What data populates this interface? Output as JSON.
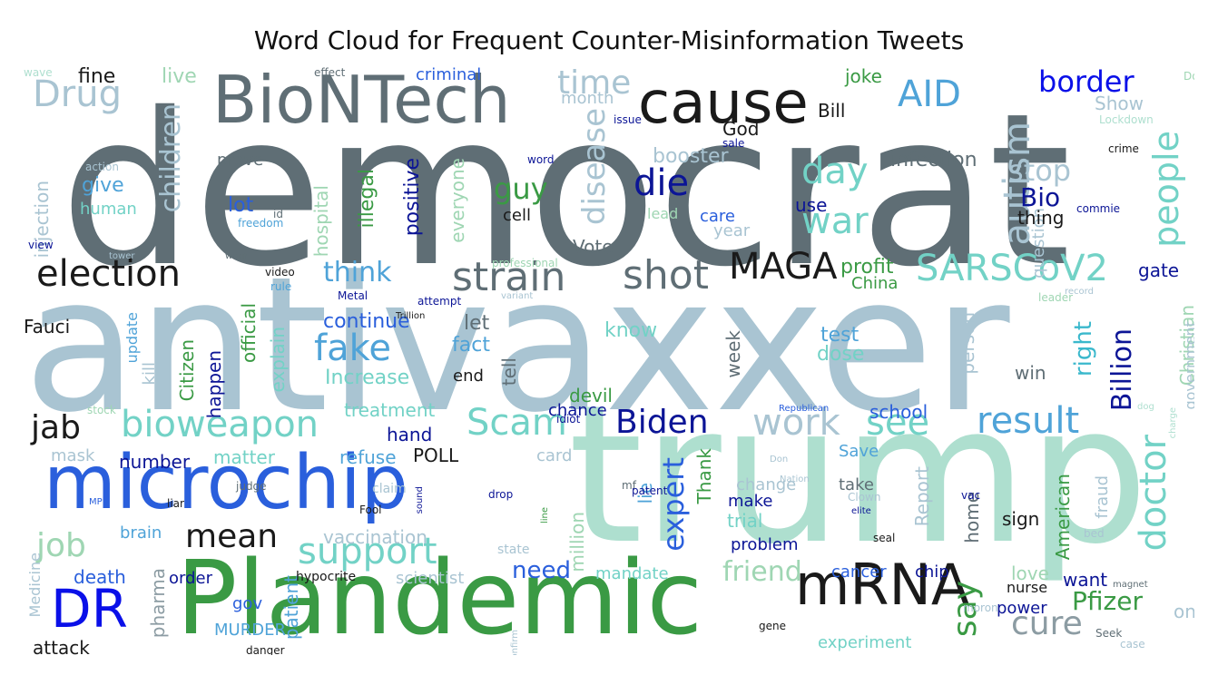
{
  "title": "Word Cloud for Frequent Counter-Misinformation Tweets",
  "palette": {
    "slate": "#5f6e75",
    "lightblue": "#a9c4d2",
    "mint": "#aedfcf",
    "green": "#3a9a44",
    "royalblue": "#2a5fdc",
    "navy": "#0c1596",
    "black": "#1a1a1a",
    "teal": "#72d2c6",
    "skyblue": "#4fa3d8",
    "lightgreen": "#9fd6b3"
  },
  "words": [
    {
      "text": "democrat",
      "color": "#5f6e75"
    },
    {
      "text": "antivaxxer",
      "color": "#a9c4d2"
    },
    {
      "text": "trump",
      "color": "#aedfcf"
    },
    {
      "text": "Plandemic",
      "color": "#3a9a44"
    },
    {
      "text": "microchip",
      "color": "#2a5fdc"
    },
    {
      "text": "BioNTech",
      "color": "#5f6e75"
    },
    {
      "text": "cause",
      "color": "#1a1a1a"
    },
    {
      "text": "mRNA",
      "color": "#1a1a1a"
    },
    {
      "text": "strain",
      "color": "#5f6e75"
    },
    {
      "text": "shot",
      "color": "#5f6e75"
    },
    {
      "text": "MAGA",
      "color": "#1a1a1a"
    },
    {
      "text": "election",
      "color": "#1a1a1a"
    },
    {
      "text": "SARSCoV2",
      "color": "#72d2c6"
    },
    {
      "text": "bioweapon",
      "color": "#72d2c6"
    },
    {
      "text": "Scam",
      "color": "#72d2c6"
    },
    {
      "text": "Biden",
      "color": "#0c1596"
    },
    {
      "text": "result",
      "color": "#4fa3d8"
    },
    {
      "text": "doctor",
      "color": "#72d2c6"
    },
    {
      "text": "people",
      "color": "#72d2c6"
    },
    {
      "text": "DR",
      "color": "#0a10e8"
    },
    {
      "text": "jab",
      "color": "#1a1a1a"
    },
    {
      "text": "support",
      "color": "#72d2c6"
    },
    {
      "text": "mean",
      "color": "#1a1a1a"
    },
    {
      "text": "job",
      "color": "#9fd6b3"
    },
    {
      "text": "Drug",
      "color": "#a9c4d2"
    },
    {
      "text": "AID",
      "color": "#4fa3d8"
    },
    {
      "text": "autism",
      "color": "#a9c4d2"
    },
    {
      "text": "border",
      "color": "#0a10e8"
    },
    {
      "text": "die",
      "color": "#0c1596"
    },
    {
      "text": "day",
      "color": "#72d2c6"
    },
    {
      "text": "war",
      "color": "#72d2c6"
    },
    {
      "text": "fake",
      "color": "#4fa3d8"
    },
    {
      "text": "work",
      "color": "#a9c4d2"
    },
    {
      "text": "see",
      "color": "#72d2c6"
    },
    {
      "text": "cure",
      "color": "#8c9ca3"
    },
    {
      "text": "say",
      "color": "#3a9a44"
    },
    {
      "text": "Pfizer",
      "color": "#3a9a44"
    },
    {
      "text": "friend",
      "color": "#9fd6b3"
    },
    {
      "text": "need",
      "color": "#2a5fdc"
    },
    {
      "text": "expert",
      "color": "#2a5fdc"
    },
    {
      "text": "Billion",
      "color": "#0c1596"
    },
    {
      "text": "right",
      "color": "#3ab8cc"
    },
    {
      "text": "time",
      "color": "#a9c4d2"
    },
    {
      "text": "disease",
      "color": "#a9c4d2"
    },
    {
      "text": "children",
      "color": "#a9c4d2"
    },
    {
      "text": "guy",
      "color": "#3a9a44"
    },
    {
      "text": "stop",
      "color": "#a9c4d2"
    },
    {
      "text": "Bio",
      "color": "#0c1596"
    },
    {
      "text": "think",
      "color": "#4fa3d8"
    },
    {
      "text": "fine",
      "color": "#1a1a1a"
    },
    {
      "text": "live",
      "color": "#9fd6b3"
    },
    {
      "text": "criminal",
      "color": "#2a5fdc"
    },
    {
      "text": "joke",
      "color": "#3a9a44"
    },
    {
      "text": "Show",
      "color": "#a9c4d2"
    },
    {
      "text": "God",
      "color": "#1a1a1a"
    },
    {
      "text": "Bill",
      "color": "#1a1a1a"
    },
    {
      "text": "month",
      "color": "#a9c4d2"
    },
    {
      "text": "prove",
      "color": "#5f6e75"
    },
    {
      "text": "booster",
      "color": "#a9c4d2"
    },
    {
      "text": "infection",
      "color": "#5f6e75"
    },
    {
      "text": "injection",
      "color": "#a9c4d2"
    },
    {
      "text": "give",
      "color": "#4fa3d8"
    },
    {
      "text": "human",
      "color": "#72d2c6"
    },
    {
      "text": "lot",
      "color": "#2a5fdc"
    },
    {
      "text": "hospital",
      "color": "#9fd6b3"
    },
    {
      "text": "illegal",
      "color": "#3a9a44"
    },
    {
      "text": "positive",
      "color": "#0c1596"
    },
    {
      "text": "everyone",
      "color": "#9fd6b3"
    },
    {
      "text": "cell",
      "color": "#1a1a1a"
    },
    {
      "text": "lead",
      "color": "#9fd6b3"
    },
    {
      "text": "care",
      "color": "#2a5fdc"
    },
    {
      "text": "use",
      "color": "#0c1596"
    },
    {
      "text": "question",
      "color": "#a9c4d2"
    },
    {
      "text": "thing",
      "color": "#1a1a1a"
    },
    {
      "text": "year",
      "color": "#a9c4d2"
    },
    {
      "text": "Vote",
      "color": "#5f6e75"
    },
    {
      "text": "profit",
      "color": "#3a9a44"
    },
    {
      "text": "China",
      "color": "#3a9a44"
    },
    {
      "text": "gate",
      "color": "#0c1596"
    },
    {
      "text": "Fauci",
      "color": "#1a1a1a"
    },
    {
      "text": "continue",
      "color": "#2a5fdc"
    },
    {
      "text": "let",
      "color": "#5f6e75"
    },
    {
      "text": "fact",
      "color": "#4fa3d8"
    },
    {
      "text": "know",
      "color": "#72d2c6"
    },
    {
      "text": "week",
      "color": "#5f6e75"
    },
    {
      "text": "test",
      "color": "#4fa3d8"
    },
    {
      "text": "dose",
      "color": "#72d2c6"
    },
    {
      "text": "person",
      "color": "#a9c4d2"
    },
    {
      "text": "win",
      "color": "#5f6e75"
    },
    {
      "text": "Christian",
      "color": "#9fd6b3"
    },
    {
      "text": "government",
      "color": "#a9c4d2"
    },
    {
      "text": "update",
      "color": "#4fa3d8"
    },
    {
      "text": "Citizen",
      "color": "#3a9a44"
    },
    {
      "text": "official",
      "color": "#3a9a44"
    },
    {
      "text": "explain",
      "color": "#72d2c6"
    },
    {
      "text": "happen",
      "color": "#0c1596"
    },
    {
      "text": "Increase",
      "color": "#72d2c6"
    },
    {
      "text": "end",
      "color": "#1a1a1a"
    },
    {
      "text": "tell",
      "color": "#5f6e75"
    },
    {
      "text": "kill",
      "color": "#a9c4d2"
    },
    {
      "text": "devil",
      "color": "#3a9a44"
    },
    {
      "text": "chance",
      "color": "#0c1596"
    },
    {
      "text": "school",
      "color": "#2a5fdc"
    },
    {
      "text": "treatment",
      "color": "#72d2c6"
    },
    {
      "text": "hand",
      "color": "#0c1596"
    },
    {
      "text": "number",
      "color": "#0c1596"
    },
    {
      "text": "matter",
      "color": "#72d2c6"
    },
    {
      "text": "refuse",
      "color": "#4fa3d8"
    },
    {
      "text": "POLL",
      "color": "#1a1a1a"
    },
    {
      "text": "card",
      "color": "#a9c4d2"
    },
    {
      "text": "Thank",
      "color": "#3a9a44"
    },
    {
      "text": "Save",
      "color": "#4fa3d8"
    },
    {
      "text": "mask",
      "color": "#a9c4d2"
    },
    {
      "text": "change",
      "color": "#a9c4d2"
    },
    {
      "text": "take",
      "color": "#5f6e75"
    },
    {
      "text": "Report",
      "color": "#a9c4d2"
    },
    {
      "text": "home",
      "color": "#5f6e75"
    },
    {
      "text": "sign",
      "color": "#1a1a1a"
    },
    {
      "text": "American",
      "color": "#3a9a44"
    },
    {
      "text": "fraud",
      "color": "#a9c4d2"
    },
    {
      "text": "make",
      "color": "#0c1596"
    },
    {
      "text": "trial",
      "color": "#72d2c6"
    },
    {
      "text": "problem",
      "color": "#0c1596"
    },
    {
      "text": "vaccination",
      "color": "#a9c4d2"
    },
    {
      "text": "brain",
      "color": "#4fa3d8"
    },
    {
      "text": "state",
      "color": "#a9c4d2"
    },
    {
      "text": "million",
      "color": "#9fd6b3"
    },
    {
      "text": "lie",
      "color": "#4fa3d8"
    },
    {
      "text": "order",
      "color": "#0c1596"
    },
    {
      "text": "death",
      "color": "#2a5fdc"
    },
    {
      "text": "pharma",
      "color": "#8c9ca3"
    },
    {
      "text": "scientist",
      "color": "#a9c4d2"
    },
    {
      "text": "mandate",
      "color": "#72d2c6"
    },
    {
      "text": "cancer",
      "color": "#2a5fdc"
    },
    {
      "text": "chip",
      "color": "#0c1596"
    },
    {
      "text": "love",
      "color": "#9fd6b3"
    },
    {
      "text": "want",
      "color": "#0c1596"
    },
    {
      "text": "nurse",
      "color": "#1a1a1a"
    },
    {
      "text": "power",
      "color": "#0c1596"
    },
    {
      "text": "one",
      "color": "#a9c4d2"
    },
    {
      "text": "gov",
      "color": "#2a5fdc"
    },
    {
      "text": "MURDER",
      "color": "#4fa3d8"
    },
    {
      "text": "patient",
      "color": "#4fa3d8"
    },
    {
      "text": "experiment",
      "color": "#72d2c6"
    },
    {
      "text": "Medicine",
      "color": "#a9c4d2"
    },
    {
      "text": "attack",
      "color": "#1a1a1a"
    },
    {
      "text": "hypocrite",
      "color": "#1a1a1a"
    },
    {
      "text": "effect",
      "color": "#5f6e75"
    },
    {
      "text": "issue",
      "color": "#0c1596"
    },
    {
      "text": "Doc",
      "color": "#9fd6b3"
    },
    {
      "text": "Lockdown",
      "color": "#aedfcf"
    },
    {
      "text": "sale",
      "color": "#0c1596"
    },
    {
      "text": "word",
      "color": "#0c1596"
    },
    {
      "text": "crime",
      "color": "#1a1a1a"
    },
    {
      "text": "action",
      "color": "#a9c4d2"
    },
    {
      "text": "id",
      "color": "#5f6e75"
    },
    {
      "text": "freedom",
      "color": "#4fa3d8"
    },
    {
      "text": "commie",
      "color": "#0c1596"
    },
    {
      "text": "view",
      "color": "#0c1596"
    },
    {
      "text": "tower",
      "color": "#a9c4d2"
    },
    {
      "text": "warn",
      "color": "#5f6e75"
    },
    {
      "text": "professional",
      "color": "#9fd6b3"
    },
    {
      "text": "video",
      "color": "#1a1a1a"
    },
    {
      "text": "rule",
      "color": "#4fa3d8"
    },
    {
      "text": "Metal",
      "color": "#0c1596"
    },
    {
      "text": "attempt",
      "color": "#0c1596"
    },
    {
      "text": "variant",
      "color": "#a9c4d2"
    },
    {
      "text": "leader",
      "color": "#9fd6b3"
    },
    {
      "text": "Trillion",
      "color": "#1a1a1a"
    },
    {
      "text": "record",
      "color": "#a9c4d2"
    },
    {
      "text": "stock",
      "color": "#9fd6b3"
    },
    {
      "text": "Republican",
      "color": "#2a5fdc"
    },
    {
      "text": "idiot",
      "color": "#0c1596"
    },
    {
      "text": "dog",
      "color": "#aedfcf"
    },
    {
      "text": "charge",
      "color": "#aedfcf"
    },
    {
      "text": "Don",
      "color": "#a9c4d2"
    },
    {
      "text": "MP",
      "color": "#2a5fdc"
    },
    {
      "text": "liar",
      "color": "#1a1a1a"
    },
    {
      "text": "judge",
      "color": "#5f6e75"
    },
    {
      "text": "Fool",
      "color": "#1a1a1a"
    },
    {
      "text": "claim",
      "color": "#a9c4d2"
    },
    {
      "text": "sound",
      "color": "#0c1596"
    },
    {
      "text": "drop",
      "color": "#0c1596"
    },
    {
      "text": "line",
      "color": "#3a9a44"
    },
    {
      "text": "mf",
      "color": "#5f6e75"
    },
    {
      "text": "patent",
      "color": "#0c1596"
    },
    {
      "text": "Nation",
      "color": "#a9c4d2"
    },
    {
      "text": "Clown",
      "color": "#a9c4d2"
    },
    {
      "text": "elite",
      "color": "#0c1596"
    },
    {
      "text": "seal",
      "color": "#1a1a1a"
    },
    {
      "text": "vac",
      "color": "#0c1596"
    },
    {
      "text": "bed",
      "color": "#a9c4d2"
    },
    {
      "text": "magnet",
      "color": "#5f6e75"
    },
    {
      "text": "gene",
      "color": "#1a1a1a"
    },
    {
      "text": "danger",
      "color": "#1a1a1a"
    },
    {
      "text": "moron",
      "color": "#a9c4d2"
    },
    {
      "text": "Seek",
      "color": "#5f6e75"
    },
    {
      "text": "case",
      "color": "#a9c4d2"
    },
    {
      "text": "confirm",
      "color": "#a9c4d2"
    },
    {
      "text": "wave",
      "color": "#aedfcf"
    }
  ]
}
